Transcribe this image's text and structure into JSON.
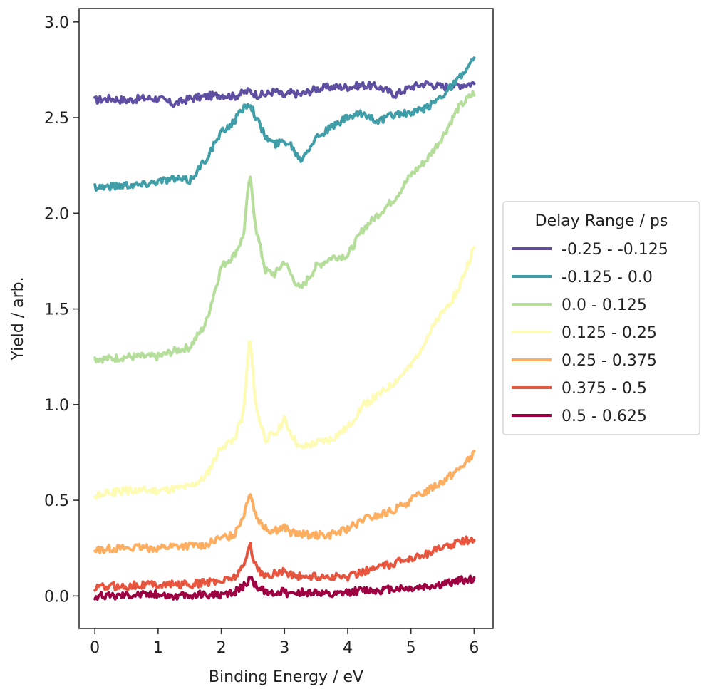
{
  "chart_data": {
    "type": "line",
    "title": "",
    "xlabel": "Binding Energy / eV",
    "ylabel": "Yield / arb.",
    "xlim": [
      -0.25,
      6.3
    ],
    "ylim": [
      -0.17,
      3.07
    ],
    "xticks": [
      0,
      1,
      2,
      3,
      4,
      5,
      6
    ],
    "xtick_labels": [
      "0",
      "1",
      "2",
      "3",
      "4",
      "5",
      "6"
    ],
    "yticks": [
      0.0,
      0.5,
      1.0,
      1.5,
      2.0,
      2.5,
      3.0
    ],
    "ytick_labels": [
      "0.0",
      "0.5",
      "1.0",
      "1.5",
      "2.0",
      "2.5",
      "3.0"
    ],
    "grid": false,
    "legend": {
      "title": "Delay Range / ps",
      "placement": "outside right"
    },
    "x": [
      0.0,
      0.25,
      0.5,
      0.75,
      1.0,
      1.25,
      1.5,
      1.75,
      2.0,
      2.2,
      2.35,
      2.45,
      2.55,
      2.7,
      2.85,
      3.0,
      3.1,
      3.25,
      3.5,
      3.75,
      4.0,
      4.25,
      4.5,
      4.75,
      5.0,
      5.25,
      5.5,
      5.75,
      6.0
    ],
    "series": [
      {
        "name": "-0.25 - -0.125",
        "color": "#5e4fa2",
        "values": [
          2.59,
          2.6,
          2.59,
          2.6,
          2.6,
          2.57,
          2.6,
          2.61,
          2.62,
          2.61,
          2.63,
          2.64,
          2.62,
          2.62,
          2.64,
          2.61,
          2.63,
          2.62,
          2.65,
          2.66,
          2.66,
          2.67,
          2.66,
          2.62,
          2.66,
          2.68,
          2.66,
          2.67,
          2.68
        ]
      },
      {
        "name": "-0.125 - 0.0",
        "color": "#3f9ea8",
        "values": [
          2.14,
          2.14,
          2.15,
          2.15,
          2.17,
          2.18,
          2.17,
          2.28,
          2.42,
          2.48,
          2.55,
          2.58,
          2.5,
          2.4,
          2.36,
          2.38,
          2.36,
          2.28,
          2.4,
          2.45,
          2.5,
          2.52,
          2.48,
          2.52,
          2.52,
          2.55,
          2.62,
          2.7,
          2.8
        ]
      },
      {
        "name": "0.0 - 0.125",
        "color": "#b4de9a",
        "values": [
          1.24,
          1.24,
          1.25,
          1.25,
          1.25,
          1.28,
          1.3,
          1.42,
          1.72,
          1.78,
          1.88,
          2.2,
          1.92,
          1.7,
          1.68,
          1.75,
          1.68,
          1.6,
          1.72,
          1.77,
          1.78,
          1.92,
          2.0,
          2.08,
          2.2,
          2.28,
          2.4,
          2.55,
          2.63
        ]
      },
      {
        "name": "0.125 - 0.25",
        "color": "#fdfbb4",
        "values": [
          0.52,
          0.54,
          0.55,
          0.55,
          0.55,
          0.56,
          0.57,
          0.62,
          0.78,
          0.82,
          0.95,
          1.36,
          0.98,
          0.82,
          0.85,
          0.92,
          0.85,
          0.77,
          0.8,
          0.82,
          0.88,
          1.0,
          1.05,
          1.12,
          1.2,
          1.35,
          1.48,
          1.6,
          1.82
        ]
      },
      {
        "name": "0.25 - 0.375",
        "color": "#fdae61",
        "values": [
          0.24,
          0.25,
          0.25,
          0.25,
          0.25,
          0.26,
          0.26,
          0.27,
          0.3,
          0.32,
          0.42,
          0.55,
          0.42,
          0.35,
          0.34,
          0.36,
          0.33,
          0.32,
          0.32,
          0.32,
          0.35,
          0.4,
          0.42,
          0.45,
          0.5,
          0.55,
          0.6,
          0.66,
          0.74
        ]
      },
      {
        "name": "0.375 - 0.5",
        "color": "#e8553f",
        "values": [
          0.04,
          0.05,
          0.05,
          0.06,
          0.06,
          0.06,
          0.06,
          0.07,
          0.08,
          0.1,
          0.15,
          0.27,
          0.15,
          0.1,
          0.12,
          0.13,
          0.11,
          0.1,
          0.1,
          0.1,
          0.1,
          0.13,
          0.15,
          0.17,
          0.2,
          0.22,
          0.25,
          0.28,
          0.3
        ]
      },
      {
        "name": "0.5 - 0.625",
        "color": "#9e0142",
        "values": [
          0.0,
          0.0,
          0.01,
          0.01,
          0.01,
          0.0,
          0.0,
          0.01,
          0.0,
          0.02,
          0.05,
          0.09,
          0.05,
          0.02,
          0.02,
          0.02,
          0.01,
          0.02,
          0.02,
          0.0,
          0.02,
          0.03,
          0.03,
          0.04,
          0.04,
          0.05,
          0.06,
          0.08,
          0.09
        ]
      }
    ]
  }
}
